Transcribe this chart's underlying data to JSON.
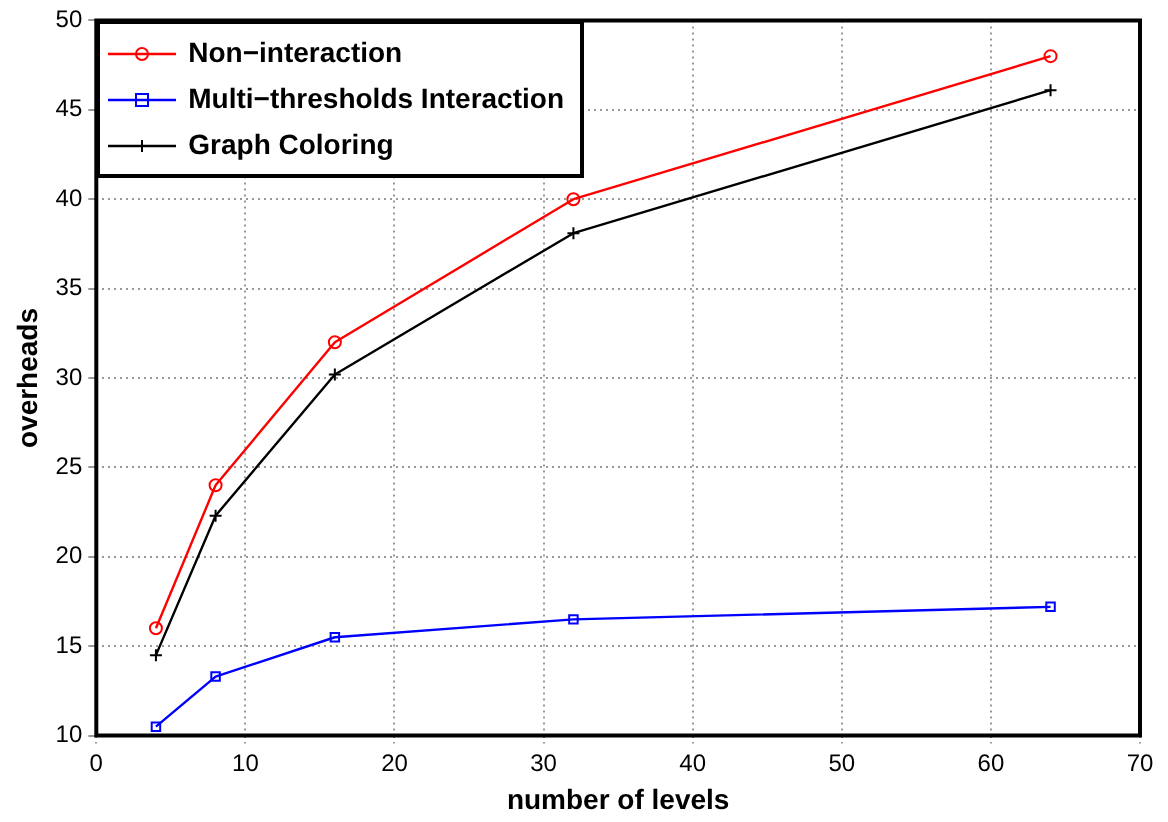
{
  "chart_data": {
    "type": "line",
    "xlabel": "number of levels",
    "ylabel": "overheads",
    "x": [
      4,
      8,
      16,
      32,
      64
    ],
    "series": [
      {
        "name": "Non−interaction",
        "color": "#ff0000",
        "marker": "circle",
        "values": [
          16,
          24,
          32,
          40,
          48
        ]
      },
      {
        "name": "Multi−thresholds Interaction",
        "color": "#0000ff",
        "marker": "square",
        "values": [
          10.5,
          13.3,
          15.5,
          16.5,
          17.2
        ]
      },
      {
        "name": "Graph Coloring",
        "color": "#000000",
        "marker": "cross",
        "values": [
          14.5,
          22.3,
          30.2,
          38.1,
          46.1
        ]
      }
    ],
    "xlim": [
      0,
      70
    ],
    "xticks": [
      0,
      10,
      20,
      30,
      40,
      50,
      60,
      70
    ],
    "ylim": [
      10,
      50
    ],
    "yticks": [
      10,
      15,
      20,
      25,
      30,
      35,
      40,
      45,
      50
    ],
    "grid": true,
    "legend": "top left",
    "line_style": "solid"
  }
}
